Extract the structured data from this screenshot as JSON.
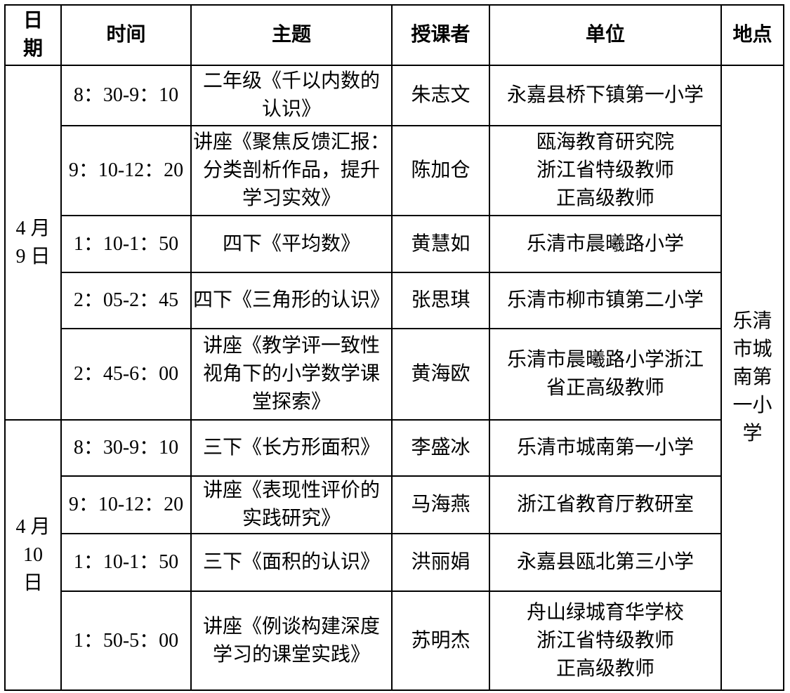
{
  "table": {
    "headers": {
      "date": "日\n期",
      "time": "时间",
      "topic": "主题",
      "lecturer": "授课者",
      "unit": "单位",
      "location": "地点"
    },
    "dates": [
      {
        "label": "4 月\n9 日"
      },
      {
        "label": "4 月\n10\n日"
      }
    ],
    "location": "乐清\n市城\n南第\n一小\n学",
    "rows": [
      {
        "time": "8：30-9：10",
        "topic": "二年级《千以内数的\n认识》",
        "lecturer": "朱志文",
        "unit": "永嘉县桥下镇第一小学"
      },
      {
        "time": "9：10-12：20",
        "topic": "讲座《聚焦反馈汇报：\n分类剖析作品，提升\n学习实效》",
        "lecturer": "陈加仓",
        "unit": "瓯海教育研究院\n浙江省特级教师\n正高级教师"
      },
      {
        "time": "1：10-1：50",
        "topic": "四下《平均数》",
        "lecturer": "黄慧如",
        "unit": "乐清市晨曦路小学"
      },
      {
        "time": "2：05-2：45",
        "topic": "四下《三角形的认识》",
        "lecturer": "张思琪",
        "unit": "乐清市柳市镇第二小学"
      },
      {
        "time": "2：45-6：00",
        "topic": "讲座《教学评一致性\n视角下的小学数学课\n堂探索》",
        "lecturer": "黄海欧",
        "unit": "乐清市晨曦路小学浙江\n省正高级教师"
      },
      {
        "time": "8：30-9：10",
        "topic": "三下《长方形面积》",
        "lecturer": "李盛冰",
        "unit": "乐清市城南第一小学"
      },
      {
        "time": "9：10-12：20",
        "topic": "讲座《表现性评价的\n实践研究》",
        "lecturer": "马海燕",
        "unit": "浙江省教育厅教研室"
      },
      {
        "time": "1：10-1：50",
        "topic": "三下《面积的认识》",
        "lecturer": "洪丽娟",
        "unit": "永嘉县瓯北第三小学"
      },
      {
        "time": "1：50-5：00",
        "topic": "讲座《例谈构建深度\n学习的课堂实践》",
        "lecturer": "苏明杰",
        "unit": "舟山绿城育华学校\n浙江省特级教师\n正高级教师"
      }
    ]
  }
}
